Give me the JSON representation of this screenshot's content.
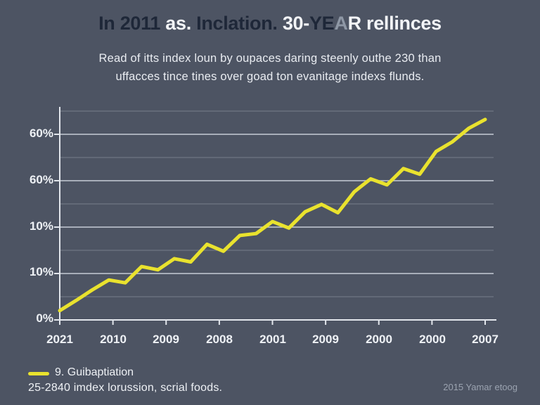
{
  "title": {
    "segments": [
      {
        "text": "In 2011 "
      },
      {
        "text": "as. "
      },
      {
        "text": "Inclation. "
      },
      {
        "text": "30-"
      },
      {
        "text": "YE"
      },
      {
        "text": "A"
      },
      {
        "text": "R rellinces"
      }
    ]
  },
  "subtitle": {
    "line1": "Read of itts index loun by oupaces daring steenly outhe 230 than",
    "line2": "uffacces tince tines over goad ton evanitage indexs flunds."
  },
  "chart_data": {
    "type": "line",
    "title": "In 2011 as. Inclation. 30-YEAR rellinces",
    "xlabel": "",
    "ylabel": "",
    "x_tick_labels": [
      "2021",
      "2010",
      "2009",
      "2008",
      "2001",
      "2009",
      "2000",
      "2000",
      "2007"
    ],
    "y_tick_labels_top_to_bottom": [
      "60%",
      "60%",
      "10%",
      "10%",
      "0%"
    ],
    "ylim": [
      0,
      45
    ],
    "y_major_step": 10,
    "y_minor_step": 5,
    "grid": true,
    "legend_position": "bottom-left",
    "series": [
      {
        "name": "9. Guibaptiation",
        "color": "#e9e22e",
        "values": [
          2.0,
          4.2,
          6.5,
          8.6,
          8.0,
          11.5,
          10.8,
          13.2,
          12.5,
          16.3,
          14.8,
          18.2,
          18.6,
          21.2,
          19.8,
          23.3,
          24.9,
          23.1,
          27.6,
          30.4,
          29.1,
          32.6,
          31.4,
          36.3,
          38.4,
          41.3,
          43.2
        ]
      }
    ]
  },
  "legend": {
    "series_label": "9. Guibaptiation",
    "note": "25-2840 imdex lorussion, scrial foods."
  },
  "footer": {
    "credit": "2015 Yamar etoog"
  },
  "colors": {
    "background": "#4d5463",
    "title_dark": "#1e2738",
    "title_light": "#f3f5f8",
    "title_muted": "#8e97a5",
    "line_yellow": "#e9e22e",
    "grid_major": "#dde2ea",
    "grid_minor": "#9aa1ad",
    "axis": "#e2e6ec",
    "label_text": "#eef1f5",
    "credit_text": "#9ba3b0"
  }
}
